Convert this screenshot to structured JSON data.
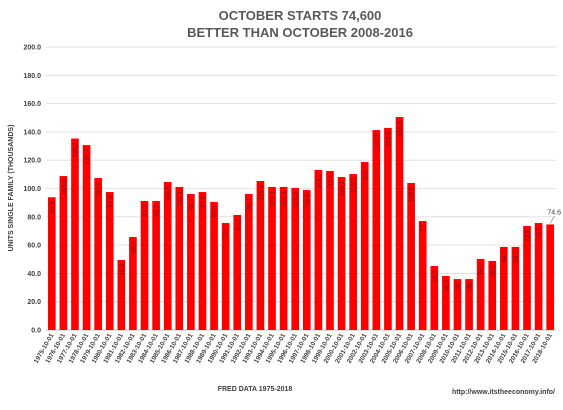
{
  "chart_data": {
    "type": "bar",
    "title": "OCTOBER STARTS 74,600",
    "subtitle": "BETTER THAN OCTOBER 2008-2016",
    "y_label": "UNITS SINGLE FAMILY (THOUSANDS)",
    "source": "FRED  DATA 1975-2018",
    "url": "http://www.itstheeconomy.info/",
    "color": "#ff0000",
    "grid": true,
    "ylim": [
      0,
      200
    ],
    "yticks": [
      {
        "value": 0,
        "label": "0.0"
      },
      {
        "value": 20,
        "label": "20.0"
      },
      {
        "value": 40,
        "label": "40.0"
      },
      {
        "value": 60,
        "label": "60.0"
      },
      {
        "value": 80,
        "label": "80.0"
      },
      {
        "value": 100,
        "label": "100.0"
      },
      {
        "value": 120,
        "label": "120.0"
      },
      {
        "value": 140,
        "label": "140.0"
      },
      {
        "value": 160,
        "label": "160.0"
      },
      {
        "value": 180,
        "label": "180.0"
      },
      {
        "value": 200,
        "label": "200.0"
      }
    ],
    "categories": [
      "1975-10-01",
      "1976-10-01",
      "1977-10-01",
      "1978-10-01",
      "1979-10-01",
      "1980-10-01",
      "1981-10-01",
      "1982-10-01",
      "1983-10-01",
      "1984-10-01",
      "1985-10-01",
      "1986-10-01",
      "1987-10-01",
      "1988-10-01",
      "1989-10-01",
      "1990-10-01",
      "1991-10-01",
      "1992-10-01",
      "1993-10-01",
      "1994-10-01",
      "1995-10-01",
      "1996-10-01",
      "1997-10-01",
      "1998-10-01",
      "1999-10-01",
      "2000-10-01",
      "2001-10-01",
      "2002-10-01",
      "2003-10-01",
      "2004-10-01",
      "2005-10-01",
      "2006-10-01",
      "2007-10-01",
      "2008-10-01",
      "2009-10-01",
      "2010-10-01",
      "2011-10-01",
      "2012-10-01",
      "2013-10-01",
      "2014-10-01",
      "2015-10-01",
      "2016-10-01",
      "2017-10-01",
      "2018-10-01"
    ],
    "values": [
      93.8,
      108.8,
      135.3,
      130.7,
      107.4,
      97.5,
      49.5,
      65.7,
      91.2,
      91.2,
      104.6,
      101.1,
      96.1,
      97.5,
      90.5,
      75.6,
      81.3,
      96.1,
      105.3,
      101.1,
      101.1,
      100.4,
      98.9,
      113.1,
      112.4,
      108.1,
      110.2,
      118.7,
      141.3,
      142.8,
      150.5,
      103.9,
      77.0,
      45.2,
      38.2,
      36.0,
      36.0,
      50.2,
      48.8,
      58.7,
      58.7,
      73.5,
      75.6,
      74.6
    ]
  }
}
